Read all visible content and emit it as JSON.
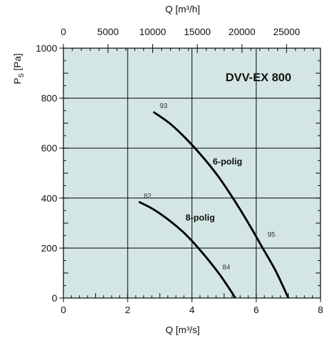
{
  "chart_data": {
    "type": "line",
    "title": "DVV-EX 800",
    "xlabel": "Q [m³/s]",
    "x2label": "Q [m³/h]",
    "ylabel_main": "P",
    "ylabel_sub": "S",
    "ylabel_unit": " [Pa]",
    "xlim": [
      0,
      8
    ],
    "ylim": [
      0,
      1000
    ],
    "x2lim": [
      0,
      28800
    ],
    "x_ticks": [
      0,
      2,
      4,
      6,
      8
    ],
    "x_tick_labels": [
      "0",
      "2",
      "4",
      "6",
      "8"
    ],
    "y_ticks": [
      0,
      200,
      400,
      600,
      800,
      1000
    ],
    "y_tick_labels": [
      "0",
      "200",
      "400",
      "600",
      "800",
      "1000"
    ],
    "x2_ticks": [
      0,
      5000,
      10000,
      15000,
      20000,
      25000
    ],
    "x2_tick_labels": [
      "0",
      "5000",
      "10000",
      "15000",
      "20000",
      "25000"
    ],
    "grid": true,
    "colors": {
      "plot_bg": "#d3e6e3",
      "grid": "#000000",
      "curve": "#000000"
    },
    "series": [
      {
        "name": "6-polig",
        "x": [
          2.8,
          3.3,
          3.8,
          4.3,
          4.8,
          5.3,
          5.8,
          6.2,
          6.6,
          7.0
        ],
        "y": [
          745,
          700,
          640,
          570,
          490,
          395,
          290,
          200,
          110,
          0
        ],
        "labels": [
          {
            "text": "93",
            "x": 3.0,
            "y": 760
          },
          {
            "text": "95",
            "x": 6.35,
            "y": 245
          }
        ]
      },
      {
        "name": "8-polig",
        "x": [
          2.35,
          2.8,
          3.3,
          3.8,
          4.3,
          4.8,
          5.1,
          5.35
        ],
        "y": [
          385,
          355,
          310,
          255,
          185,
          105,
          50,
          0
        ],
        "labels": [
          {
            "text": "82",
            "x": 2.5,
            "y": 400
          },
          {
            "text": "84",
            "x": 4.95,
            "y": 115
          }
        ]
      }
    ]
  }
}
